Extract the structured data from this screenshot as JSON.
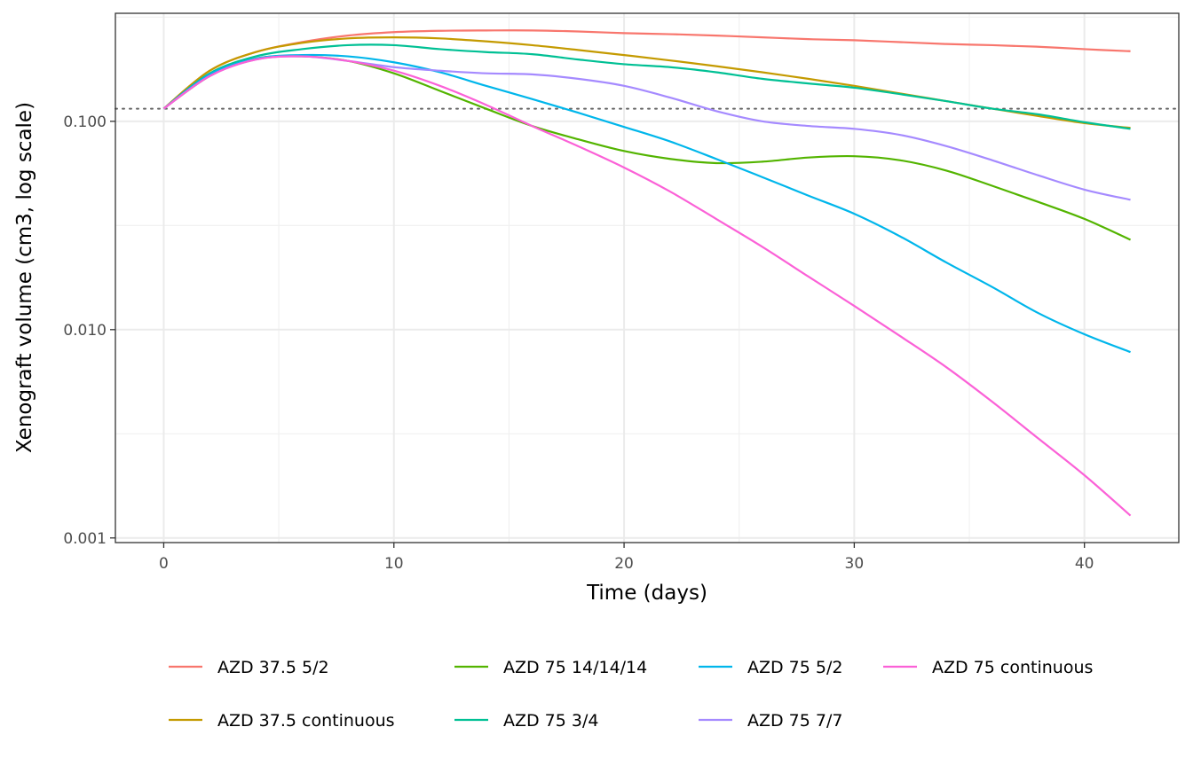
{
  "chart_data": {
    "type": "line",
    "title": "",
    "xlabel": "Time (days)",
    "ylabel": "Xenograft volume (cm3, log scale)",
    "yscale": "log",
    "xlim": [
      -2.1,
      44.1
    ],
    "ylim": [
      0.00095,
      0.33
    ],
    "x_ticks": [
      0,
      10,
      20,
      30,
      40
    ],
    "x_tick_labels": [
      "0",
      "10",
      "20",
      "30",
      "40"
    ],
    "y_ticks": [
      0.001,
      0.01,
      0.1
    ],
    "y_tick_labels": [
      "0.001",
      "0.010",
      "0.100"
    ],
    "reference_line": {
      "style": "dotted",
      "y": 0.115,
      "color": "#666666"
    },
    "grid": true,
    "legend": "bottom",
    "x": [
      0,
      2,
      4,
      6,
      8,
      10,
      12,
      14,
      16,
      18,
      20,
      22,
      24,
      26,
      28,
      30,
      32,
      34,
      36,
      38,
      40,
      42
    ],
    "series": [
      {
        "name": "AZD 37.5 5/2",
        "color": "#F8766D",
        "values": [
          0.115,
          0.175,
          0.215,
          0.24,
          0.258,
          0.268,
          0.272,
          0.273,
          0.273,
          0.27,
          0.265,
          0.262,
          0.258,
          0.253,
          0.248,
          0.245,
          0.24,
          0.235,
          0.232,
          0.228,
          0.222,
          0.217
        ]
      },
      {
        "name": "AZD 37.5 continuous",
        "color": "#C49A00",
        "values": [
          0.115,
          0.175,
          0.215,
          0.238,
          0.25,
          0.253,
          0.25,
          0.242,
          0.232,
          0.22,
          0.208,
          0.196,
          0.184,
          0.172,
          0.16,
          0.148,
          0.136,
          0.125,
          0.115,
          0.106,
          0.098,
          0.093
        ]
      },
      {
        "name": "AZD 75 14/14/14",
        "color": "#53B400",
        "values": [
          0.115,
          0.165,
          0.2,
          0.205,
          0.195,
          0.17,
          0.14,
          0.115,
          0.095,
          0.082,
          0.072,
          0.066,
          0.063,
          0.064,
          0.067,
          0.068,
          0.065,
          0.058,
          0.049,
          0.041,
          0.034,
          0.027
        ]
      },
      {
        "name": "AZD 75 3/4",
        "color": "#00C094",
        "values": [
          0.115,
          0.17,
          0.205,
          0.222,
          0.232,
          0.232,
          0.222,
          0.215,
          0.21,
          0.198,
          0.188,
          0.182,
          0.172,
          0.16,
          0.152,
          0.145,
          0.135,
          0.125,
          0.115,
          0.108,
          0.099,
          0.092
        ]
      },
      {
        "name": "AZD 75 5/2",
        "color": "#00B6EB",
        "values": [
          0.115,
          0.168,
          0.2,
          0.208,
          0.205,
          0.192,
          0.172,
          0.148,
          0.128,
          0.11,
          0.094,
          0.08,
          0.066,
          0.054,
          0.044,
          0.036,
          0.028,
          0.021,
          0.016,
          0.012,
          0.0095,
          0.0078
        ]
      },
      {
        "name": "AZD 75 7/7",
        "color": "#A58AFF",
        "values": [
          0.115,
          0.165,
          0.198,
          0.205,
          0.195,
          0.182,
          0.175,
          0.17,
          0.168,
          0.16,
          0.148,
          0.13,
          0.112,
          0.1,
          0.095,
          0.092,
          0.086,
          0.076,
          0.065,
          0.055,
          0.047,
          0.042
        ]
      },
      {
        "name": "AZD 75 continuous",
        "color": "#FB61D7",
        "values": [
          0.115,
          0.165,
          0.198,
          0.205,
          0.195,
          0.175,
          0.148,
          0.12,
          0.095,
          0.076,
          0.06,
          0.046,
          0.034,
          0.025,
          0.018,
          0.013,
          0.0093,
          0.0066,
          0.0045,
          0.003,
          0.002,
          0.00128
        ]
      }
    ]
  }
}
